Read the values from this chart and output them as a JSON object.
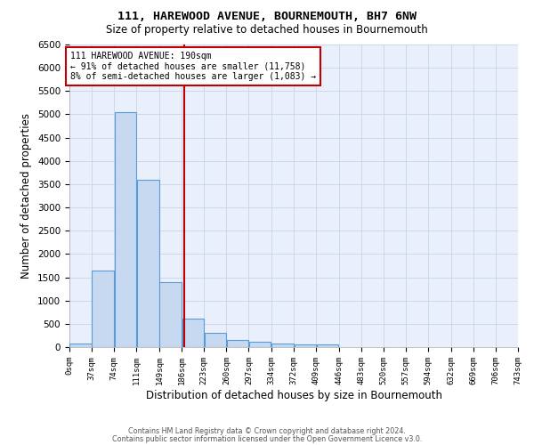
{
  "title1": "111, HAREWOOD AVENUE, BOURNEMOUTH, BH7 6NW",
  "title2": "Size of property relative to detached houses in Bournemouth",
  "xlabel": "Distribution of detached houses by size in Bournemouth",
  "ylabel": "Number of detached properties",
  "annotation_line1": "111 HAREWOOD AVENUE: 190sqm",
  "annotation_line2": "← 91% of detached houses are smaller (11,758)",
  "annotation_line3": "8% of semi-detached houses are larger (1,083) →",
  "property_size": 190,
  "bin_edges": [
    0,
    37,
    74,
    111,
    149,
    186,
    223,
    260,
    297,
    334,
    372,
    409,
    446,
    483,
    520,
    557,
    594,
    632,
    669,
    706,
    743
  ],
  "bar_heights": [
    75,
    1650,
    5050,
    3600,
    1400,
    620,
    300,
    160,
    110,
    70,
    50,
    55,
    0,
    0,
    0,
    0,
    0,
    0,
    0,
    0
  ],
  "bar_color": "#c6d9f0",
  "bar_edge_color": "#5b9bd5",
  "vline_x": 190,
  "vline_color": "#c00000",
  "annotation_box_edge_color": "#c00000",
  "background_color": "#ffffff",
  "plot_bg_color": "#eaf0fb",
  "grid_color": "#c8d4e8",
  "ylim": [
    0,
    6500
  ],
  "yticks": [
    0,
    500,
    1000,
    1500,
    2000,
    2500,
    3000,
    3500,
    4000,
    4500,
    5000,
    5500,
    6000,
    6500
  ],
  "footer1": "Contains HM Land Registry data © Crown copyright and database right 2024.",
  "footer2": "Contains public sector information licensed under the Open Government Licence v3.0."
}
